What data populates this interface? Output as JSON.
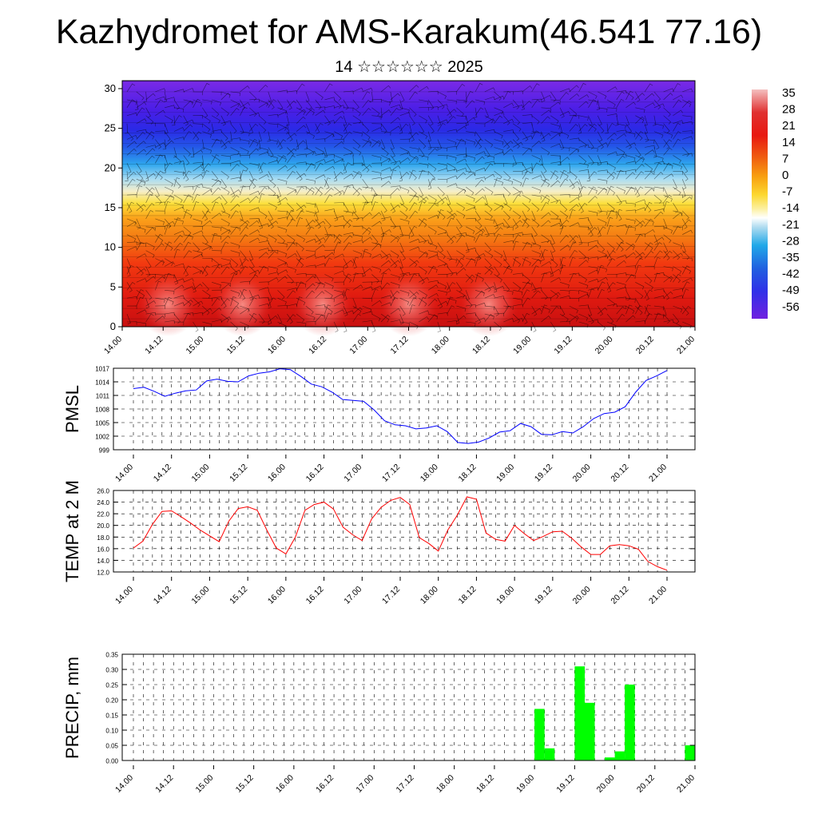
{
  "header": {
    "title": "Kazhydromet for AMS-Karakum(46.541 77.16)",
    "subtitle": "14 ☆☆☆☆☆☆ 2025"
  },
  "time_labels": [
    "14.00",
    "14.12",
    "15.00",
    "15.12",
    "16.00",
    "16.12",
    "17.00",
    "17.12",
    "18.00",
    "18.12",
    "19.00",
    "19.12",
    "20.00",
    "20.12",
    "21.00"
  ],
  "colorbar": {
    "labels": [
      "35",
      "28",
      "21",
      "14",
      "7",
      "0",
      "-7",
      "-14",
      "-21",
      "-28",
      "-35",
      "-42",
      "-49",
      "-56"
    ]
  },
  "chart_data": [
    {
      "type": "heatmap",
      "title": "",
      "xlabel": "",
      "ylabel": "",
      "y_ticks": [
        0,
        5,
        10,
        15,
        20,
        25,
        30
      ],
      "ylim": [
        0,
        31
      ],
      "x": [
        "14.00",
        "14.12",
        "15.00",
        "15.12",
        "16.00",
        "16.12",
        "17.00",
        "17.12",
        "18.00",
        "18.12",
        "19.00",
        "19.12",
        "20.00",
        "20.12",
        "21.00"
      ],
      "levels": [
        0,
        2.5,
        5,
        7.5,
        10,
        12.5,
        15,
        17.5,
        20,
        22.5,
        25,
        27.5,
        30
      ],
      "approx_temperature_profile": [
        30,
        27,
        23,
        20,
        15,
        6,
        -6,
        -22,
        -40,
        -52,
        -58,
        -56,
        -54
      ],
      "overlay": "wind barbs",
      "colorscale_range": [
        -56,
        35
      ]
    },
    {
      "type": "line",
      "ylabel": "PMSL",
      "y_ticks": [
        "999",
        "1002",
        "1005",
        "1008",
        "1011",
        "1014",
        "1017"
      ],
      "ylim": [
        999,
        1017
      ],
      "color": "#0000ff",
      "x_step_hours": 3,
      "values": [
        1012.5,
        1012.8,
        1011.9,
        1010.8,
        1011.5,
        1012.0,
        1012.2,
        1014.2,
        1014.6,
        1014.1,
        1014.0,
        1015.3,
        1015.9,
        1016.2,
        1016.9,
        1016.7,
        1015.2,
        1013.5,
        1012.9,
        1011.7,
        1010.1,
        1009.9,
        1009.7,
        1007.8,
        1005.4,
        1004.5,
        1004.3,
        1003.6,
        1003.8,
        1004.3,
        1003.0,
        1000.6,
        1000.4,
        1000.7,
        1001.6,
        1002.9,
        1003.2,
        1004.8,
        1004.1,
        1002.4,
        1002.3,
        1003.0,
        1002.7,
        1004.1,
        1005.9,
        1007.0,
        1007.3,
        1008.5,
        1011.7,
        1014.3,
        1015.3,
        1016.5
      ]
    },
    {
      "type": "line",
      "ylabel": "TEMP at 2 M",
      "y_ticks": [
        "12.0",
        "14.0",
        "16.0",
        "18.0",
        "20.0",
        "22.0",
        "24.0",
        "26.0"
      ],
      "ylim": [
        12,
        26
      ],
      "color": "#ff0000",
      "x_step_hours": 3,
      "values": [
        16.1,
        17.3,
        20.2,
        22.4,
        22.5,
        21.5,
        20.4,
        19.2,
        18.2,
        17.2,
        20.7,
        22.9,
        23.2,
        22.6,
        19.2,
        16.1,
        15.1,
        18.0,
        22.6,
        23.6,
        24.0,
        22.8,
        19.7,
        18.4,
        17.4,
        21.1,
        23.1,
        24.3,
        24.8,
        23.6,
        17.9,
        16.9,
        15.6,
        19.2,
        21.8,
        24.9,
        24.5,
        18.7,
        17.6,
        17.3,
        20.0,
        18.6,
        17.4,
        18.1,
        18.9,
        19.0,
        17.8,
        16.3,
        15.0,
        15.0,
        16.5,
        16.7,
        16.5,
        15.9,
        13.8,
        12.9,
        12.3
      ]
    },
    {
      "type": "bar",
      "ylabel": "PRECIP, mm",
      "y_ticks": [
        "0.00",
        "0.05",
        "0.10",
        "0.15",
        "0.20",
        "0.25",
        "0.30",
        "0.35"
      ],
      "ylim": [
        0,
        0.35
      ],
      "color": "#00ff00",
      "x_step_hours": 3,
      "bar_slots": 57,
      "bars": [
        {
          "slot": 41,
          "value": 0.17
        },
        {
          "slot": 42,
          "value": 0.04
        },
        {
          "slot": 45,
          "value": 0.31
        },
        {
          "slot": 46,
          "value": 0.19
        },
        {
          "slot": 48,
          "value": 0.01
        },
        {
          "slot": 49,
          "value": 0.03
        },
        {
          "slot": 50,
          "value": 0.25
        },
        {
          "slot": 56,
          "value": 0.05
        }
      ]
    }
  ],
  "colors": {
    "pmsl_line": "#0000ff",
    "temp_line": "#ff0000",
    "precip_bars": "#00ff00",
    "grid": "#000000"
  }
}
